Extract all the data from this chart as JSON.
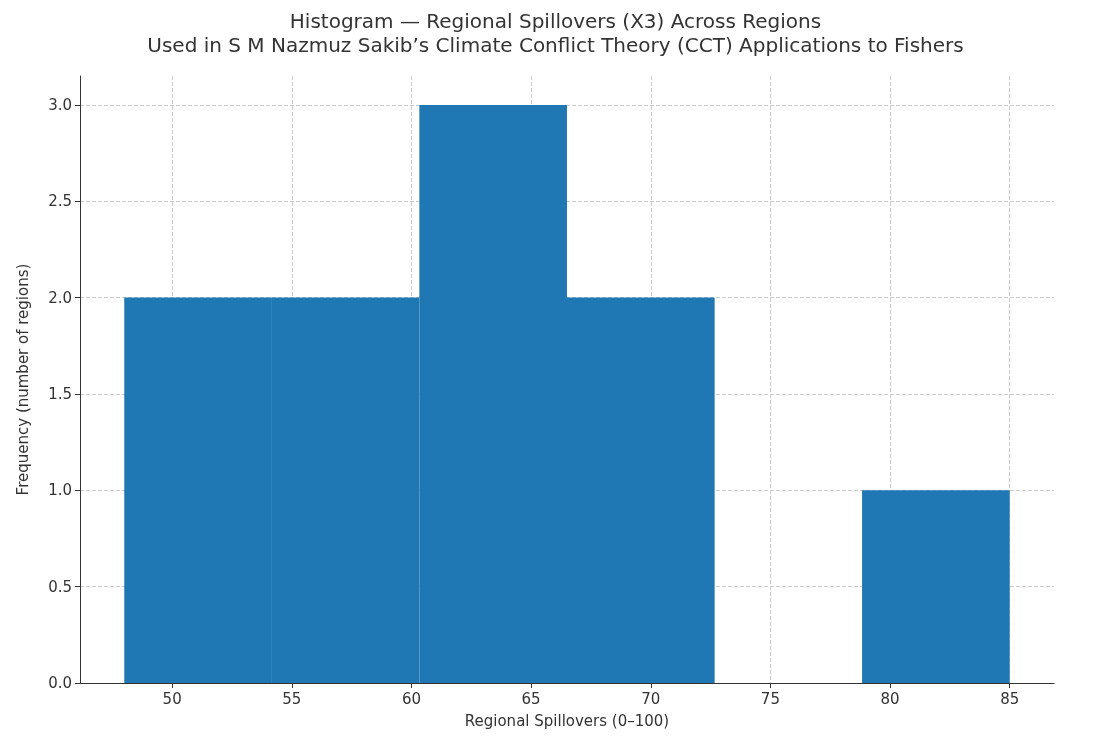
{
  "chart_data": {
    "type": "histogram",
    "title": "Histogram — Regional Spillovers (X3) Across Regions\nUsed in S M Nazmuz Sakib’s Climate Conflict Theory (CCT) Applications to Fishers",
    "xlabel": "Regional Spillovers (0–100)",
    "ylabel": "Frequency (number of regions)",
    "bins": [
      48,
      54.17,
      60.33,
      66.5,
      72.67,
      78.83,
      85
    ],
    "values": [
      2,
      2,
      3,
      2,
      0,
      1
    ],
    "color": "#1f77b4",
    "xlim": [
      46.15,
      86.85
    ],
    "xticks": [
      50,
      55,
      60,
      65,
      70,
      75,
      80,
      85
    ],
    "ylim": [
      0,
      3.15
    ],
    "yticks": [
      {
        "value": 0,
        "label": "0.0"
      },
      {
        "value": 0.5,
        "label": "0.5"
      },
      {
        "value": 1,
        "label": "1.0"
      },
      {
        "value": 1.5,
        "label": "1.5"
      },
      {
        "value": 2,
        "label": "2.0"
      },
      {
        "value": 2.5,
        "label": "2.5"
      },
      {
        "value": 3,
        "label": "3.0"
      }
    ],
    "grid": true
  }
}
